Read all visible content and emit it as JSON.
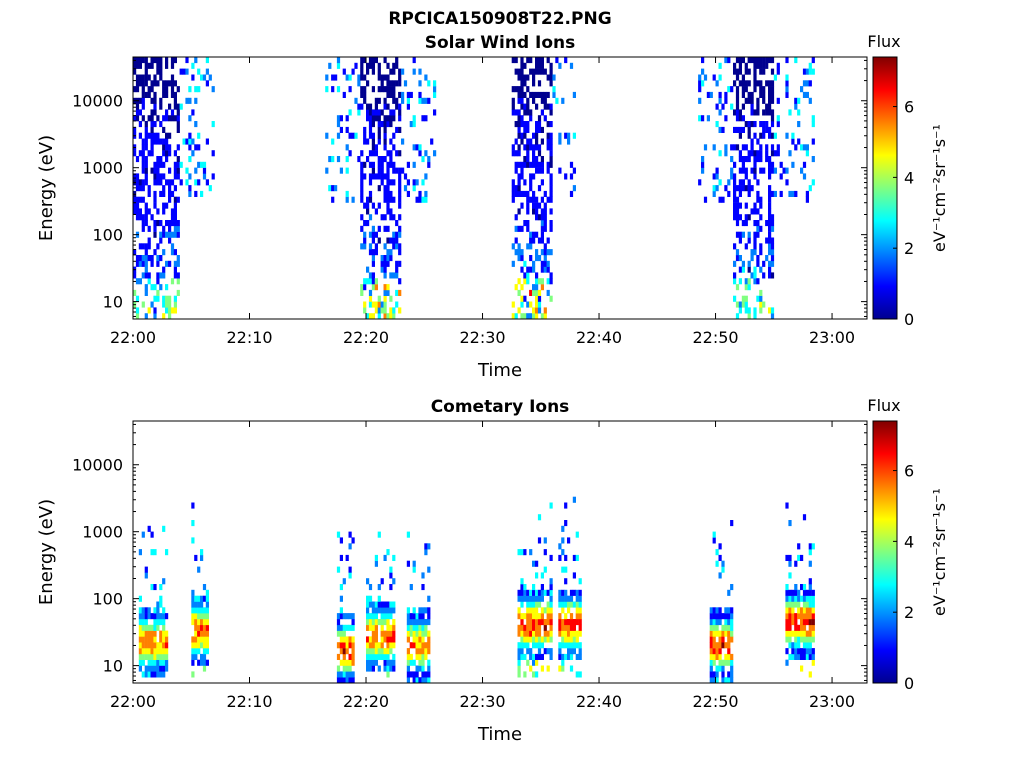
{
  "figure": {
    "title": "RPCICA150908T22.PNG"
  },
  "colormap": [
    "#00008f",
    "#0000ff",
    "#0080ff",
    "#00ffff",
    "#80ff80",
    "#ffff00",
    "#ff8000",
    "#ff0000",
    "#800000"
  ],
  "chart_data": [
    {
      "type": "heatmap",
      "title": "Solar Wind Ions",
      "xlabel": "Time",
      "ylabel": "Energy (eV)",
      "x_ticks": [
        "22:00",
        "22:10",
        "22:20",
        "22:30",
        "22:40",
        "22:50",
        "23:00"
      ],
      "x_tick_minutes": [
        0,
        10,
        20,
        30,
        40,
        50,
        60
      ],
      "xlim_minutes": [
        0,
        63
      ],
      "y_scale": "log",
      "ylim": [
        5.5,
        45000
      ],
      "y_ticks": [
        "10",
        "100",
        "1000",
        "10000"
      ],
      "y_tick_values": [
        10,
        100,
        1000,
        10000
      ],
      "colorbar": {
        "title": "Flux",
        "label": "eV⁻¹cm⁻²sr⁻¹s⁻¹",
        "ticks": [
          "0",
          "2",
          "4",
          "6"
        ],
        "tick_values": [
          0,
          2,
          4,
          6
        ],
        "range": [
          0,
          7.4
        ]
      },
      "bursts": [
        {
          "t_start": 0.0,
          "t_end": 4.0,
          "e_min": 6,
          "e_max": 35000,
          "peak_flux": 4.2,
          "sparse_t_end": 7
        },
        {
          "t_start": 19.5,
          "t_end": 23.0,
          "e_min": 6,
          "e_max": 35000,
          "peak_flux": 5.2,
          "sparse_t_start": 16.5,
          "sparse_t_end": 26
        },
        {
          "t_start": 32.5,
          "t_end": 36.0,
          "e_min": 6,
          "e_max": 35000,
          "peak_flux": 6.3,
          "sparse_t_end": 38
        },
        {
          "t_start": 51.5,
          "t_end": 55.0,
          "e_min": 6,
          "e_max": 35000,
          "peak_flux": 3.8,
          "sparse_t_start": 48.5,
          "sparse_t_end": 58.5
        }
      ]
    },
    {
      "type": "heatmap",
      "title": "Cometary Ions",
      "xlabel": "Time",
      "ylabel": "Energy (eV)",
      "x_ticks": [
        "22:00",
        "22:10",
        "22:20",
        "22:30",
        "22:40",
        "22:50",
        "23:00"
      ],
      "x_tick_minutes": [
        0,
        10,
        20,
        30,
        40,
        50,
        60
      ],
      "xlim_minutes": [
        0,
        63
      ],
      "y_scale": "log",
      "ylim": [
        5.5,
        45000
      ],
      "y_ticks": [
        "10",
        "100",
        "1000",
        "10000"
      ],
      "y_tick_values": [
        10,
        100,
        1000,
        10000
      ],
      "colorbar": {
        "title": "Flux",
        "label": "eV⁻¹cm⁻²sr⁻¹s⁻¹",
        "ticks": [
          "0",
          "2",
          "4",
          "6"
        ],
        "tick_values": [
          0,
          2,
          4,
          6
        ],
        "range": [
          0,
          7.4
        ]
      },
      "bursts": [
        {
          "t_start": 0.5,
          "t_end": 3.0,
          "e_center": 20,
          "peak_flux": 6.3
        },
        {
          "t_start": 5.0,
          "t_end": 6.5,
          "e_center": 30,
          "peak_flux": 6.8
        },
        {
          "t_start": 17.5,
          "t_end": 19.0,
          "e_center": 15,
          "peak_flux": 7.2
        },
        {
          "t_start": 20.0,
          "t_end": 22.5,
          "e_center": 25,
          "peak_flux": 6.8
        },
        {
          "t_start": 23.5,
          "t_end": 25.5,
          "e_center": 18,
          "peak_flux": 6.3
        },
        {
          "t_start": 33.0,
          "t_end": 36.0,
          "e_center": 38,
          "peak_flux": 7.2
        },
        {
          "t_start": 36.5,
          "t_end": 38.5,
          "e_center": 38,
          "peak_flux": 7.2
        },
        {
          "t_start": 49.5,
          "t_end": 51.5,
          "e_center": 18,
          "peak_flux": 7.2
        },
        {
          "t_start": 56.0,
          "t_end": 58.5,
          "e_center": 40,
          "peak_flux": 7.2
        }
      ]
    }
  ]
}
